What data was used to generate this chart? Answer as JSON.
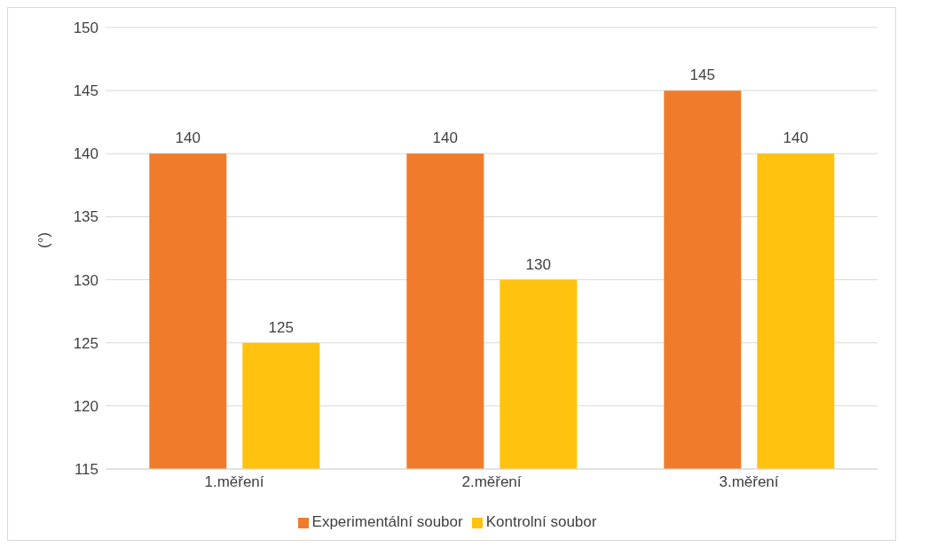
{
  "chart_data": {
    "type": "bar",
    "ylabel": "(°)",
    "categories": [
      "1.měření",
      "2.měření",
      "3.měření"
    ],
    "series": [
      {
        "name": "Experimentální soubor",
        "color": "#f07b2a",
        "values": [
          140,
          140,
          145
        ]
      },
      {
        "name": "Kontrolní soubor",
        "color": "#ffc20e",
        "values": [
          125,
          130,
          140
        ]
      }
    ],
    "ylim": [
      115,
      150
    ],
    "yticks": [
      115,
      120,
      125,
      130,
      135,
      140,
      145,
      150
    ],
    "grid": "y",
    "legend": "bottom",
    "data_labels": true
  }
}
